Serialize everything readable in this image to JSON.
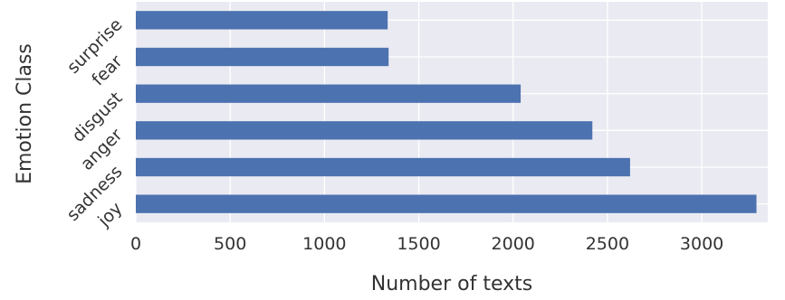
{
  "chart_data": {
    "type": "bar",
    "orientation": "horizontal",
    "categories": [
      "joy",
      "sadness",
      "anger",
      "disgust",
      "fear",
      "surprise"
    ],
    "values": [
      3290,
      2620,
      2420,
      2040,
      1340,
      1335
    ],
    "xlabel": "Number of texts",
    "ylabel": "Emotion Class",
    "xlim": [
      0,
      3350
    ],
    "xticks": [
      0,
      500,
      1000,
      1500,
      2000,
      2500,
      3000
    ],
    "tick_labels": [
      "0",
      "500",
      "1000",
      "1500",
      "2000",
      "2500",
      "3000"
    ],
    "grid": true,
    "colors": {
      "bar": "#4c72b0",
      "background": "#eaeaf2",
      "grid": "#ffffff",
      "text": "#333333"
    }
  }
}
